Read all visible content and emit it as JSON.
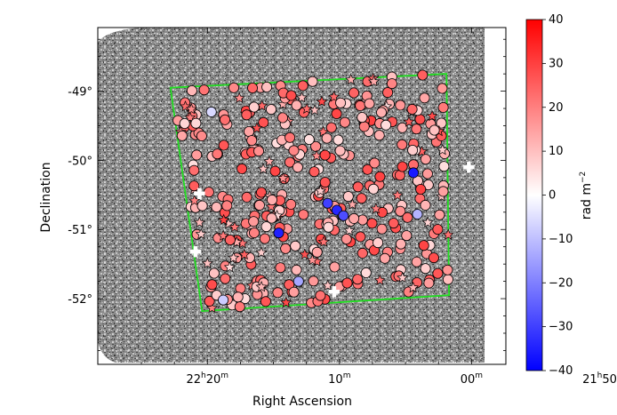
{
  "chart_data": {
    "type": "scatter",
    "background": "greyscale radio image (rotation measure map)",
    "xlabel": "Right Ascension",
    "ylabel": "Declination",
    "x_ticks": [
      {
        "ra_min": 20,
        "h": "22",
        "m": "20"
      },
      {
        "ra_min": 10,
        "h": "",
        "m": "10"
      },
      {
        "ra_min": 0,
        "h": "",
        "m": "00"
      },
      {
        "ra_min": -10,
        "h": "21",
        "m": "50"
      }
    ],
    "y_ticks": [
      {
        "dec": -49,
        "label": "-49°"
      },
      {
        "dec": -50,
        "label": "-50°"
      },
      {
        "dec": -51,
        "label": "-51°"
      },
      {
        "dec": -52,
        "label": "-52°"
      }
    ],
    "x_unit_h": "h",
    "x_unit_m": "m",
    "xlim_minutes": [
      28.3,
      -2.6
    ],
    "ylim_deg": [
      -52.95,
      -48.08
    ],
    "field_outline_color": "#22dd22",
    "field_outline": [
      [
        22.8,
        -48.95
      ],
      [
        1.9,
        -48.75
      ],
      [
        1.7,
        -51.95
      ],
      [
        20.4,
        -52.18
      ]
    ],
    "colorbar": {
      "label": "rad m",
      "label_exponent": "−2",
      "min": -40,
      "max": 40,
      "ticks": [
        "40",
        "30",
        "20",
        "10",
        "0",
        "−10",
        "−20",
        "−30",
        "−40"
      ],
      "tick_values": [
        40,
        30,
        20,
        10,
        0,
        -10,
        -20,
        -30,
        -40
      ],
      "colormap": "bwr"
    },
    "markers": {
      "circle": "point source",
      "star": "extended source",
      "cross": "reference position (white plus)"
    },
    "cross_points": [
      [
        20.6,
        -50.48
      ],
      [
        0.2,
        -50.1
      ],
      [
        20.9,
        -51.32
      ],
      [
        10.4,
        -51.9
      ]
    ],
    "notable_blue_points": [
      {
        "ra": 14.6,
        "dec": -51.05,
        "rm": -35
      },
      {
        "ra": 10.9,
        "dec": -50.62,
        "rm": -30
      },
      {
        "ra": 10.2,
        "dec": -50.72,
        "rm": -34
      },
      {
        "ra": 9.7,
        "dec": -50.8,
        "rm": -28
      },
      {
        "ra": 4.4,
        "dec": -50.18,
        "rm": -36
      },
      {
        "ra": 4.1,
        "dec": -50.78,
        "rm": -12
      },
      {
        "ra": 13.1,
        "dec": -51.75,
        "rm": -14
      },
      {
        "ra": 18.8,
        "dec": -52.02,
        "rm": -8
      },
      {
        "ra": 19.7,
        "dec": -49.3,
        "rm": -6
      }
    ],
    "typical_rm_range": [
      5,
      30
    ]
  }
}
